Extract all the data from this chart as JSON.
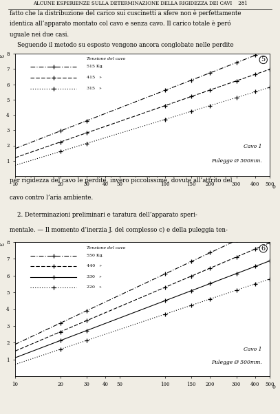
{
  "page_title": "ALCUNE ESPERIENZE SULLA DETERMINAZIONE DELLA RIGIDEZZA DEI CAVI    281",
  "para1_lines": [
    "fatto che la distribuzione del carico sui cuscinetti a sfere non è perfettamente",
    "identica all’apparato montato col cavo e senza cavo. Il carico totale è peró",
    "uguale nei due casi.",
    "    Seguendo il metodo su esposto vengono ancora conglobate nelle perdite"
  ],
  "para2_lines": [
    "per rigidezza del cavo le perdite, invero piccolissime, dovute all’attrito del",
    "cavo contro l’aria ambiente."
  ],
  "para3_line1": "    2. Determinazioni preliminari e taratura dell’apparato speri-",
  "para3_line2": "mentale. — Il momento d’inerzia J. del complesso c) e della puleggia ten-",
  "chart1": {
    "fig_num": "5",
    "legend_title": "Tensione del cavo",
    "series": [
      {
        "tension": "515 Kg.",
        "linestyle": "dashdot"
      },
      {
        "tension": "415   »",
        "linestyle": "dashed"
      },
      {
        "tension": "315   »",
        "linestyle": "dotted"
      }
    ],
    "note1": "Cavo 1",
    "note2": "Pulegge Ø 500mm.",
    "xlim": [
      10,
      500
    ],
    "ylim": [
      0,
      8
    ],
    "xticks": [
      10,
      20,
      30,
      40,
      50,
      100,
      150,
      200,
      300,
      400,
      500
    ],
    "yticks": [
      1,
      2,
      3,
      4,
      5,
      6,
      7,
      8
    ]
  },
  "chart2": {
    "fig_num": "6",
    "legend_title": "Tensione del cavo",
    "series": [
      {
        "tension": "550 Kg.",
        "linestyle": "dashdot"
      },
      {
        "tension": "440   »",
        "linestyle": "dashed"
      },
      {
        "tension": "330   »",
        "linestyle": "solid"
      },
      {
        "tension": "220   »",
        "linestyle": "dotted"
      }
    ],
    "note1": "Cavo 1",
    "note2": "Pulegge Ø 500mm.",
    "xlim": [
      10,
      500
    ],
    "ylim": [
      0,
      8
    ],
    "xticks": [
      10,
      20,
      30,
      40,
      50,
      100,
      150,
      200,
      300,
      400,
      500
    ],
    "yticks": [
      1,
      2,
      3,
      4,
      5,
      6,
      7,
      8
    ]
  },
  "bg_color": "#f0ede4",
  "chart_bg": "#ffffff"
}
